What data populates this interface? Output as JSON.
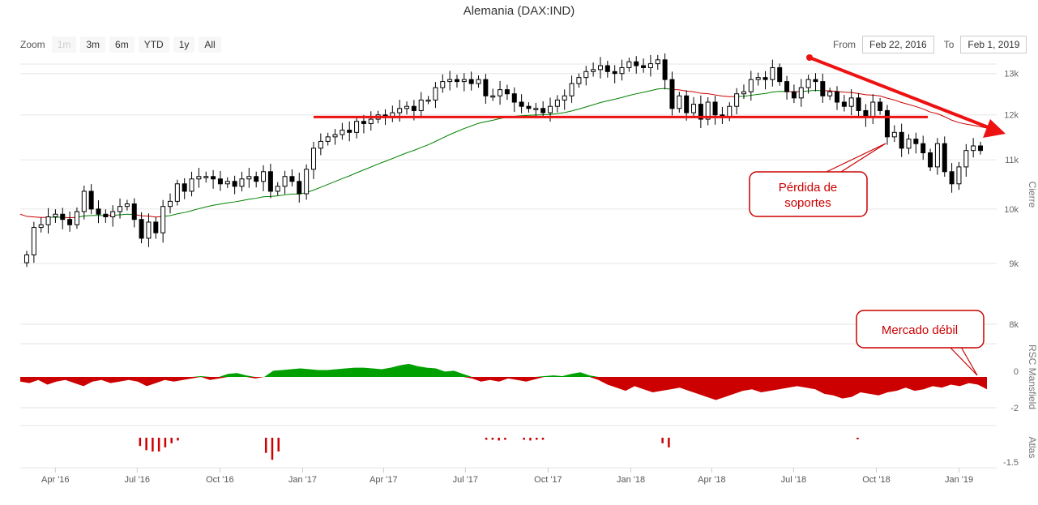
{
  "title": "Alemania (DAX:IND)",
  "zoom": {
    "label": "Zoom",
    "buttons": [
      "1m",
      "3m",
      "6m",
      "YTD",
      "1y",
      "All"
    ],
    "disabled": "1m"
  },
  "range": {
    "from_label": "From",
    "from_value": "Feb 22, 2016",
    "to_label": "To",
    "to_value": "Feb 1, 2019"
  },
  "annotations": {
    "support_loss": "Pérdida de soportes",
    "weak_market": "Mercado débil"
  },
  "colors": {
    "candle": "#000000",
    "ma_green": "#008000",
    "ma_red": "#cc0000",
    "support": "#ee1111",
    "annotation": "#cc0000",
    "positive_area": "#00a000",
    "negative_area": "#cc0000"
  },
  "chart_data": [
    {
      "type": "candlestick",
      "y_axis_label": "Cierre",
      "y_scale": "log",
      "y_ticks": [
        "8k",
        "9k",
        "10k",
        "11k",
        "12k",
        "13k"
      ],
      "ylim": [
        8000,
        13600
      ],
      "x_ticks": [
        "Apr '16",
        "Jul '16",
        "Oct '16",
        "Jan '17",
        "Apr '17",
        "Jul '17",
        "Oct '17",
        "Jan '18",
        "Apr '18",
        "Jul '18",
        "Oct '18",
        "Jan '19"
      ],
      "x_range": [
        "2016-02-22",
        "2019-02-01"
      ],
      "weekly_close": [
        9150,
        9650,
        9700,
        9850,
        9900,
        9800,
        9700,
        9950,
        10350,
        10000,
        9900,
        9850,
        9950,
        10050,
        10100,
        9800,
        9450,
        9750,
        9550,
        10050,
        10150,
        10500,
        10350,
        10600,
        10650,
        10650,
        10600,
        10500,
        10550,
        10450,
        10600,
        10650,
        10550,
        10750,
        10350,
        10450,
        10650,
        10550,
        10300,
        10800,
        11250,
        11400,
        11500,
        11550,
        11650,
        11600,
        11850,
        11800,
        11900,
        12000,
        11950,
        12050,
        12150,
        12200,
        12100,
        12350,
        12350,
        12650,
        12800,
        12850,
        12800,
        12850,
        12750,
        12850,
        12450,
        12450,
        12600,
        12500,
        12300,
        12200,
        12150,
        12150,
        12050,
        12200,
        12350,
        12450,
        12750,
        12900,
        13050,
        13100,
        13200,
        13050,
        13000,
        13150,
        13300,
        13200,
        13150,
        13250,
        13350,
        12850,
        12150,
        12450,
        12050,
        12250,
        11900,
        12300,
        12000,
        11950,
        12200,
        12500,
        12550,
        12850,
        12900,
        12850,
        13150,
        12800,
        12550,
        12400,
        12650,
        12850,
        12800,
        12450,
        12550,
        12300,
        12200,
        12400,
        12100,
        11950,
        12300,
        12100,
        11500,
        11600,
        11250,
        11450,
        11350,
        11150,
        10850,
        11350,
        10750,
        10500,
        10850,
        11200,
        11300,
        11200
      ],
      "moving_average_start": 9900,
      "support_level": 11950
    },
    {
      "type": "area",
      "y_axis_label": "RSC Mansfield",
      "y_ticks": [
        "0",
        "-2"
      ],
      "ylim": [
        -2.5,
        0.8
      ],
      "values": [
        -0.3,
        -0.4,
        -0.2,
        -0.5,
        -0.3,
        -0.2,
        -0.4,
        -0.6,
        -0.3,
        -0.2,
        -0.4,
        -0.3,
        -0.2,
        -0.3,
        -0.6,
        -0.4,
        -0.2,
        -0.3,
        -0.2,
        -0.1,
        0.05,
        -0.2,
        -0.1,
        0.2,
        0.25,
        0.1,
        -0.1,
        0.0,
        0.4,
        0.45,
        0.5,
        0.55,
        0.5,
        0.45,
        0.45,
        0.5,
        0.55,
        0.6,
        0.6,
        0.55,
        0.5,
        0.6,
        0.75,
        0.85,
        0.7,
        0.6,
        0.55,
        0.35,
        0.4,
        0.2,
        -0.1,
        -0.3,
        -0.2,
        -0.3,
        -0.1,
        -0.2,
        -0.3,
        -0.15,
        0.05,
        0.1,
        0.05,
        0.2,
        0.3,
        0.1,
        -0.2,
        -0.5,
        -0.7,
        -0.9,
        -0.6,
        -0.8,
        -1.0,
        -0.9,
        -0.8,
        -0.7,
        -0.9,
        -1.1,
        -1.3,
        -1.5,
        -1.3,
        -1.1,
        -0.9,
        -0.8,
        -1.0,
        -0.9,
        -0.8,
        -0.7,
        -0.6,
        -0.7,
        -0.8,
        -1.1,
        -1.2,
        -1.4,
        -1.3,
        -1.0,
        -1.1,
        -1.2,
        -1.0,
        -0.9,
        -0.7,
        -0.9,
        -0.8,
        -0.6,
        -0.7,
        -0.5,
        -0.6,
        -0.4,
        -0.5,
        -0.8
      ]
    },
    {
      "type": "bar",
      "y_axis_label": "Atlas",
      "y_ticks": [
        "-1.5"
      ],
      "signals": [
        {
          "date": "2016-07-04",
          "value": -0.6
        },
        {
          "date": "2016-07-11",
          "value": -0.9
        },
        {
          "date": "2016-07-18",
          "value": -1.0
        },
        {
          "date": "2016-07-25",
          "value": -1.0
        },
        {
          "date": "2016-08-01",
          "value": -0.7
        },
        {
          "date": "2016-08-08",
          "value": -0.4
        },
        {
          "date": "2016-08-15",
          "value": -0.2
        },
        {
          "date": "2016-11-21",
          "value": -1.1
        },
        {
          "date": "2016-11-28",
          "value": -1.6
        },
        {
          "date": "2016-12-05",
          "value": -1.0
        },
        {
          "date": "2017-07-24",
          "value": -0.15
        },
        {
          "date": "2017-07-31",
          "value": -0.15
        },
        {
          "date": "2017-08-07",
          "value": -0.2
        },
        {
          "date": "2017-08-14",
          "value": -0.15
        },
        {
          "date": "2017-09-04",
          "value": -0.15
        },
        {
          "date": "2017-09-11",
          "value": -0.2
        },
        {
          "date": "2017-09-18",
          "value": -0.15
        },
        {
          "date": "2017-09-25",
          "value": -0.15
        },
        {
          "date": "2018-02-05",
          "value": -0.4
        },
        {
          "date": "2018-02-12",
          "value": -0.7
        },
        {
          "date": "2018-09-10",
          "value": -0.1
        }
      ]
    }
  ]
}
